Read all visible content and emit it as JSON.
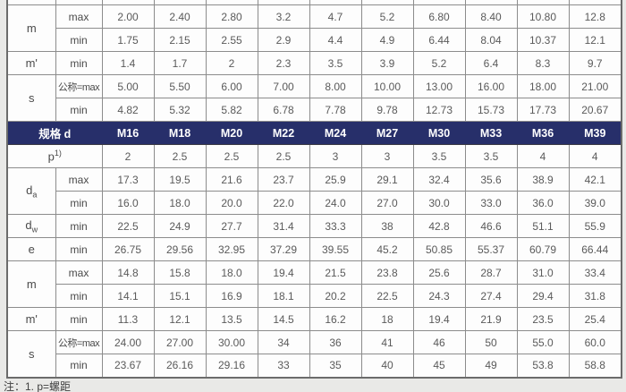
{
  "colors": {
    "page_bg": "#e9e9e7",
    "header_bg": "#272f6a",
    "header_text": "#ffffff",
    "cell_border": "#8c8c8c",
    "cell_text": "#5a5a5a"
  },
  "note": "注：1. p=螺距",
  "table": {
    "header": {
      "label": "规格 d",
      "sizes": [
        "M16",
        "M18",
        "M20",
        "M22",
        "M24",
        "M27",
        "M30",
        "M33",
        "M36",
        "M39"
      ]
    },
    "rows": [
      {
        "type": "spacer"
      },
      {
        "type": "data",
        "param": {
          "base": "m"
        },
        "rowspan": 2,
        "sub": "max",
        "values": [
          "2.00",
          "2.40",
          "2.80",
          "3.2",
          "4.7",
          "5.2",
          "6.80",
          "8.40",
          "10.80",
          "12.8"
        ]
      },
      {
        "type": "data",
        "sub": "min",
        "values": [
          "1.75",
          "2.15",
          "2.55",
          "2.9",
          "4.4",
          "4.9",
          "6.44",
          "8.04",
          "10.37",
          "12.1"
        ]
      },
      {
        "type": "data",
        "param": {
          "base": "m'"
        },
        "rowspan": 1,
        "sub": "min",
        "values": [
          "1.4",
          "1.7",
          "2",
          "2.3",
          "3.5",
          "3.9",
          "5.2",
          "6.4",
          "8.3",
          "9.7"
        ]
      },
      {
        "type": "data",
        "param": {
          "base": "s"
        },
        "rowspan": 2,
        "sub": "公称=max",
        "values": [
          "5.00",
          "5.50",
          "6.00",
          "7.00",
          "8.00",
          "10.00",
          "13.00",
          "16.00",
          "18.00",
          "21.00"
        ]
      },
      {
        "type": "data",
        "sub": "min",
        "values": [
          "4.82",
          "5.32",
          "5.82",
          "6.78",
          "7.78",
          "9.78",
          "12.73",
          "15.73",
          "17.73",
          "20.67"
        ]
      },
      {
        "type": "header"
      },
      {
        "type": "p",
        "base": "p",
        "sup": "1)",
        "values": [
          "2",
          "2.5",
          "2.5",
          "2.5",
          "3",
          "3",
          "3.5",
          "3.5",
          "4",
          "4"
        ]
      },
      {
        "type": "data",
        "param": {
          "base": "d",
          "subscript": "a"
        },
        "rowspan": 2,
        "sub": "max",
        "values": [
          "17.3",
          "19.5",
          "21.6",
          "23.7",
          "25.9",
          "29.1",
          "32.4",
          "35.6",
          "38.9",
          "42.1"
        ]
      },
      {
        "type": "data",
        "sub": "min",
        "values": [
          "16.0",
          "18.0",
          "20.0",
          "22.0",
          "24.0",
          "27.0",
          "30.0",
          "33.0",
          "36.0",
          "39.0"
        ]
      },
      {
        "type": "data",
        "param": {
          "base": "d",
          "subscript": "w"
        },
        "rowspan": 1,
        "sub": "min",
        "values": [
          "22.5",
          "24.9",
          "27.7",
          "31.4",
          "33.3",
          "38",
          "42.8",
          "46.6",
          "51.1",
          "55.9"
        ]
      },
      {
        "type": "data",
        "param": {
          "base": "e"
        },
        "rowspan": 1,
        "sub": "min",
        "values": [
          "26.75",
          "29.56",
          "32.95",
          "37.29",
          "39.55",
          "45.2",
          "50.85",
          "55.37",
          "60.79",
          "66.44"
        ]
      },
      {
        "type": "data",
        "param": {
          "base": "m"
        },
        "rowspan": 2,
        "sub": "max",
        "values": [
          "14.8",
          "15.8",
          "18.0",
          "19.4",
          "21.5",
          "23.8",
          "25.6",
          "28.7",
          "31.0",
          "33.4"
        ]
      },
      {
        "type": "data",
        "sub": "min",
        "values": [
          "14.1",
          "15.1",
          "16.9",
          "18.1",
          "20.2",
          "22.5",
          "24.3",
          "27.4",
          "29.4",
          "31.8"
        ]
      },
      {
        "type": "data",
        "param": {
          "base": "m'"
        },
        "rowspan": 1,
        "sub": "min",
        "values": [
          "11.3",
          "12.1",
          "13.5",
          "14.5",
          "16.2",
          "18",
          "19.4",
          "21.9",
          "23.5",
          "25.4"
        ]
      },
      {
        "type": "data",
        "param": {
          "base": "s"
        },
        "rowspan": 2,
        "sub": "公称=max",
        "values": [
          "24.00",
          "27.00",
          "30.00",
          "34",
          "36",
          "41",
          "46",
          "50",
          "55.0",
          "60.0"
        ]
      },
      {
        "type": "data",
        "sub": "min",
        "values": [
          "23.67",
          "26.16",
          "29.16",
          "33",
          "35",
          "40",
          "45",
          "49",
          "53.8",
          "58.8"
        ]
      }
    ]
  }
}
